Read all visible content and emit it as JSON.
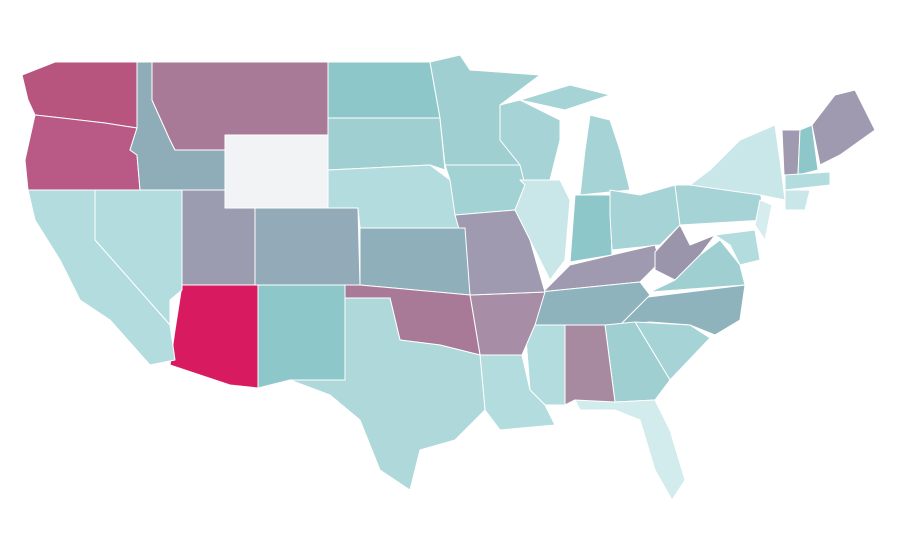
{
  "map": {
    "type": "choropleth",
    "fills": [
      "#b8557f",
      "#b85a85",
      "#8fadb8",
      "#a87a98",
      "#f2f3f4",
      "#8ec7ca",
      "#9fcfd1",
      "#b3dcde",
      "#9fcfd1",
      "#a6d3d6",
      "#a6d3d6",
      "#a6d3d6",
      "#a3d2d5",
      "#c9e7e9",
      "#8ec7ca",
      "#a6d3d6",
      "#9f9ab0",
      "#9a95ab",
      "#a6d3d6",
      "#c9e7e9",
      "#9f9ab0",
      "#8ec7ca",
      "#9f9ab0",
      "#b3dcde",
      "#c9e7e9",
      "#d6ecee",
      "#b3dcde",
      "#9fcfd1",
      "#8fb3bd",
      "#8fb3bd",
      "#a6d3d6",
      "#9fcfd1",
      "#a88aa0",
      "#b3dcde",
      "#d2ebec",
      "#b3dcde",
      "#a78ea6",
      "#9f9ab0",
      "#8fb0ba",
      "#a87a98",
      "#aed8da",
      "#8ec7ca",
      "#93abb9",
      "#9c9cb0",
      "#d81b60",
      "#b3dcde",
      "#b3dcde"
    ]
  }
}
